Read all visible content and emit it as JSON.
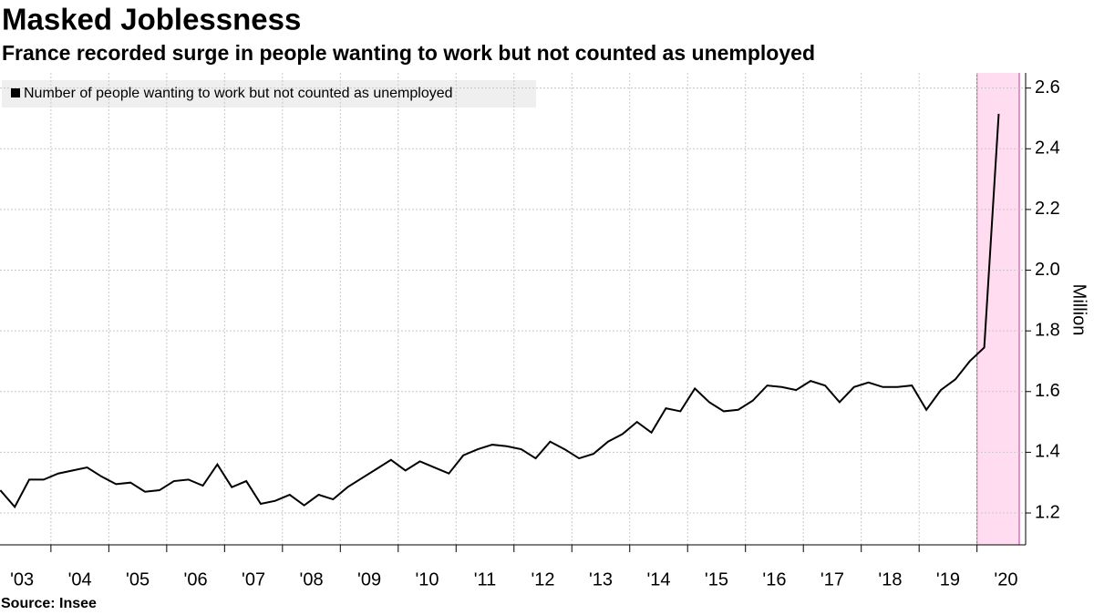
{
  "chart_data": {
    "type": "line",
    "title": "Masked Joblessness",
    "subtitle": "France recorded surge in people wanting to work but not counted as unemployed",
    "y_axis_label": "Million",
    "source": "Source: Insee",
    "x": [
      2003.125,
      2003.375,
      2003.625,
      2003.875,
      2004.125,
      2004.375,
      2004.625,
      2004.875,
      2005.125,
      2005.375,
      2005.625,
      2005.875,
      2006.125,
      2006.375,
      2006.625,
      2006.875,
      2007.125,
      2007.375,
      2007.625,
      2007.875,
      2008.125,
      2008.375,
      2008.625,
      2008.875,
      2009.125,
      2009.375,
      2009.625,
      2009.875,
      2010.125,
      2010.375,
      2010.625,
      2010.875,
      2011.125,
      2011.375,
      2011.625,
      2011.875,
      2012.125,
      2012.375,
      2012.625,
      2012.875,
      2013.125,
      2013.375,
      2013.625,
      2013.875,
      2014.125,
      2014.375,
      2014.625,
      2014.875,
      2015.125,
      2015.375,
      2015.625,
      2015.875,
      2016.125,
      2016.375,
      2016.625,
      2016.875,
      2017.125,
      2017.375,
      2017.625,
      2017.875,
      2018.125,
      2018.375,
      2018.625,
      2018.875,
      2019.125,
      2019.375,
      2019.625,
      2019.875,
      2020.125,
      2020.375
    ],
    "series": [
      {
        "name": "Number of people wanting to work but not counted as unemployed",
        "color": "#000000",
        "values": [
          1.275,
          1.22,
          1.31,
          1.31,
          1.33,
          1.34,
          1.35,
          1.32,
          1.295,
          1.3,
          1.27,
          1.275,
          1.305,
          1.31,
          1.29,
          1.36,
          1.285,
          1.305,
          1.23,
          1.24,
          1.26,
          1.225,
          1.26,
          1.245,
          1.285,
          1.315,
          1.345,
          1.375,
          1.34,
          1.37,
          1.35,
          1.33,
          1.39,
          1.41,
          1.425,
          1.42,
          1.41,
          1.38,
          1.435,
          1.41,
          1.38,
          1.395,
          1.435,
          1.46,
          1.5,
          1.465,
          1.545,
          1.535,
          1.61,
          1.565,
          1.535,
          1.54,
          1.57,
          1.62,
          1.615,
          1.605,
          1.635,
          1.62,
          1.565,
          1.615,
          1.63,
          1.615,
          1.615,
          1.62,
          1.54,
          1.605,
          1.64,
          1.7,
          1.745,
          2.515
        ]
      }
    ],
    "xlim": [
      2003.12,
      2020.84
    ],
    "xticks": [
      {
        "value": 2003.5,
        "label": "'03"
      },
      {
        "value": 2004.5,
        "label": "'04"
      },
      {
        "value": 2005.5,
        "label": "'05"
      },
      {
        "value": 2006.5,
        "label": "'06"
      },
      {
        "value": 2007.5,
        "label": "'07"
      },
      {
        "value": 2008.5,
        "label": "'08"
      },
      {
        "value": 2009.5,
        "label": "'09"
      },
      {
        "value": 2010.5,
        "label": "'10"
      },
      {
        "value": 2011.5,
        "label": "'11"
      },
      {
        "value": 2012.5,
        "label": "'12"
      },
      {
        "value": 2013.5,
        "label": "'13"
      },
      {
        "value": 2014.5,
        "label": "'14"
      },
      {
        "value": 2015.5,
        "label": "'15"
      },
      {
        "value": 2016.5,
        "label": "'16"
      },
      {
        "value": 2017.5,
        "label": "'17"
      },
      {
        "value": 2018.5,
        "label": "'18"
      },
      {
        "value": 2019.5,
        "label": "'19"
      },
      {
        "value": 2020.5,
        "label": "'20"
      }
    ],
    "xgrid": [
      2004,
      2005,
      2006,
      2007,
      2008,
      2009,
      2010,
      2011,
      2012,
      2013,
      2014,
      2015,
      2016,
      2017,
      2018,
      2019,
      2020
    ],
    "ylim": [
      1.095,
      2.65
    ],
    "yticks": [
      1.2,
      1.4,
      1.6,
      1.8,
      {
        "value": 2.0,
        "label": "2.0"
      },
      2.2,
      2.4,
      2.6
    ],
    "shade": [
      2020,
      2020.73
    ],
    "shade_color": "#ffdcef",
    "shade_edge_color": "#c0389a",
    "grid": true
  }
}
